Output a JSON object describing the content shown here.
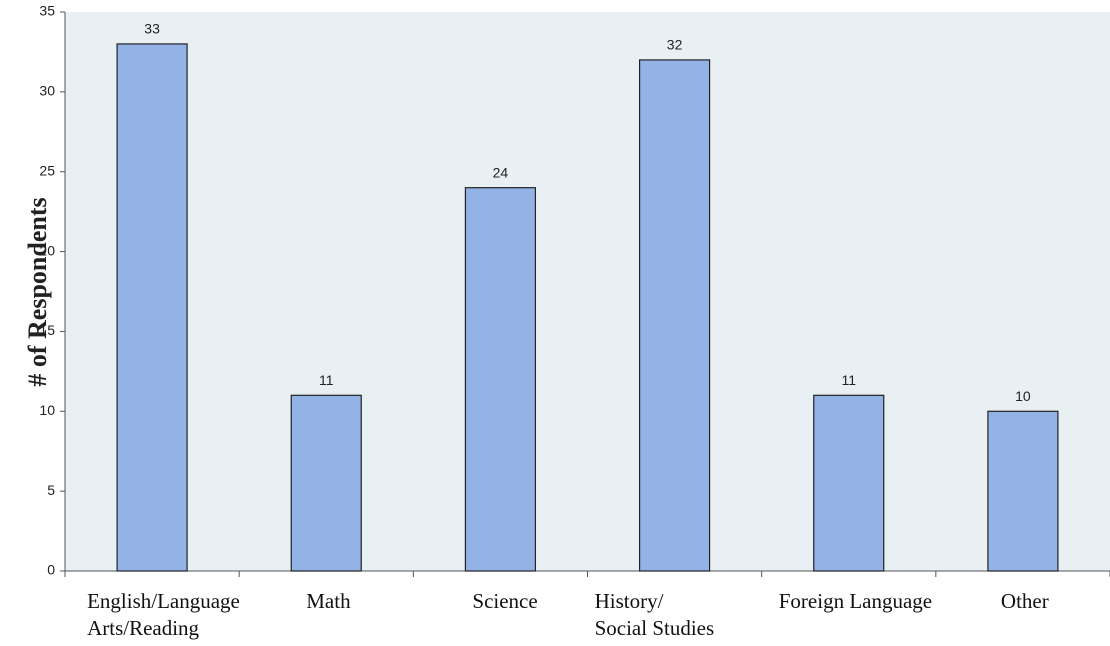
{
  "chart_data": {
    "type": "bar",
    "y_label": "# of Respondents",
    "categories": [
      "English/Language\nArts/Reading",
      "Math",
      "Science",
      "History/\nSocial Studies",
      "Foreign Language",
      "Other"
    ],
    "values": [
      33,
      11,
      24,
      32,
      11,
      10
    ],
    "color": "#93b3e6",
    "ylim": [
      0,
      35
    ],
    "yticks": [
      0,
      5,
      10,
      15,
      20,
      25,
      30,
      35
    ],
    "grid": false
  }
}
